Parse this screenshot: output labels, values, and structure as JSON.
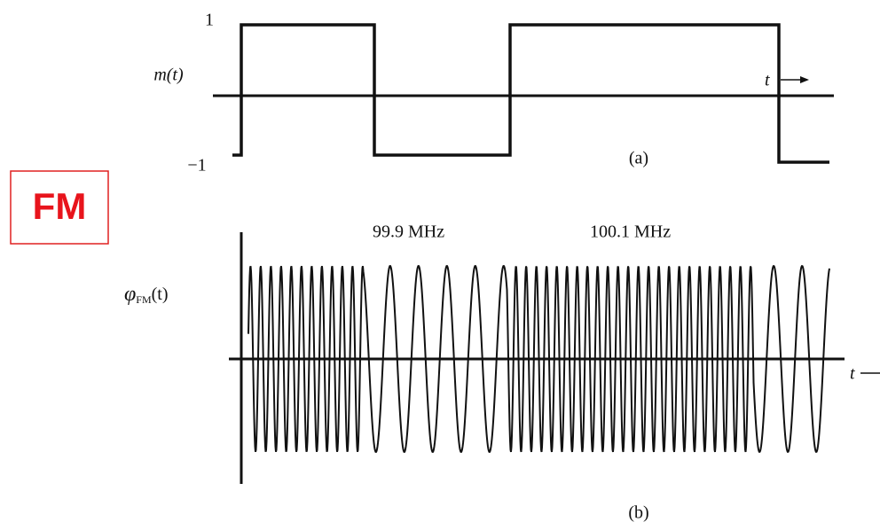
{
  "badge": "FM",
  "panel_a": {
    "top_level": "1",
    "bottom_level": "−1",
    "signal_label": "m(t)",
    "time_label": "t",
    "caption": "(a)"
  },
  "panel_b": {
    "freq_low": "99.9 MHz",
    "freq_high": "100.1 MHz",
    "signal_symbol": "φ",
    "signal_subscript": "FM",
    "signal_argument": "(t)",
    "time_label": "t",
    "caption": "(b)"
  }
}
